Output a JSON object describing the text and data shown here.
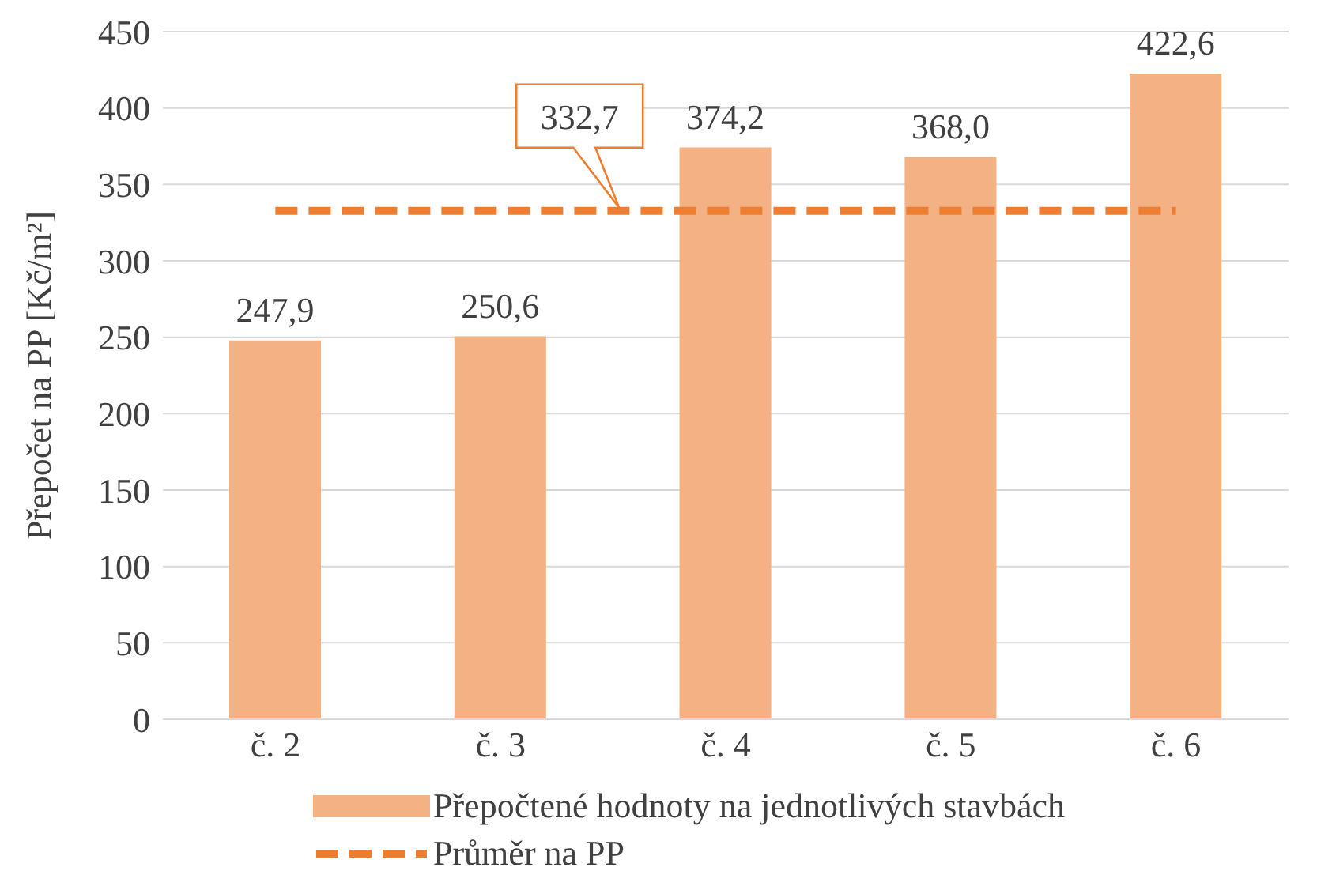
{
  "chart_data": {
    "type": "bar",
    "ylabel": "Přepočet na PP [Kč/m²]",
    "categories": [
      "č. 2",
      "č. 3",
      "č. 4",
      "č. 5",
      "č. 6"
    ],
    "series": [
      {
        "name": "Přepočtené hodnoty na jednotlivých stavbách",
        "color": "#f4b183",
        "values": [
          247.9,
          250.6,
          374.2,
          368.0,
          422.6
        ],
        "value_labels": [
          "247,9",
          "250,6",
          "374,2",
          "368,0",
          "422,6"
        ]
      },
      {
        "name": "Průměr na PP",
        "type": "line",
        "color": "#ed7d31",
        "line_style": "dashed",
        "values": [
          332.7,
          332.7,
          332.7,
          332.7,
          332.7
        ],
        "value_labels": [
          null,
          "332,7",
          null,
          null,
          null
        ]
      }
    ],
    "ylim": [
      0,
      450
    ],
    "yticks": [
      0,
      50,
      100,
      150,
      200,
      250,
      300,
      350,
      400,
      450
    ],
    "grid": "y",
    "legend": "bottom",
    "marker": "none"
  }
}
